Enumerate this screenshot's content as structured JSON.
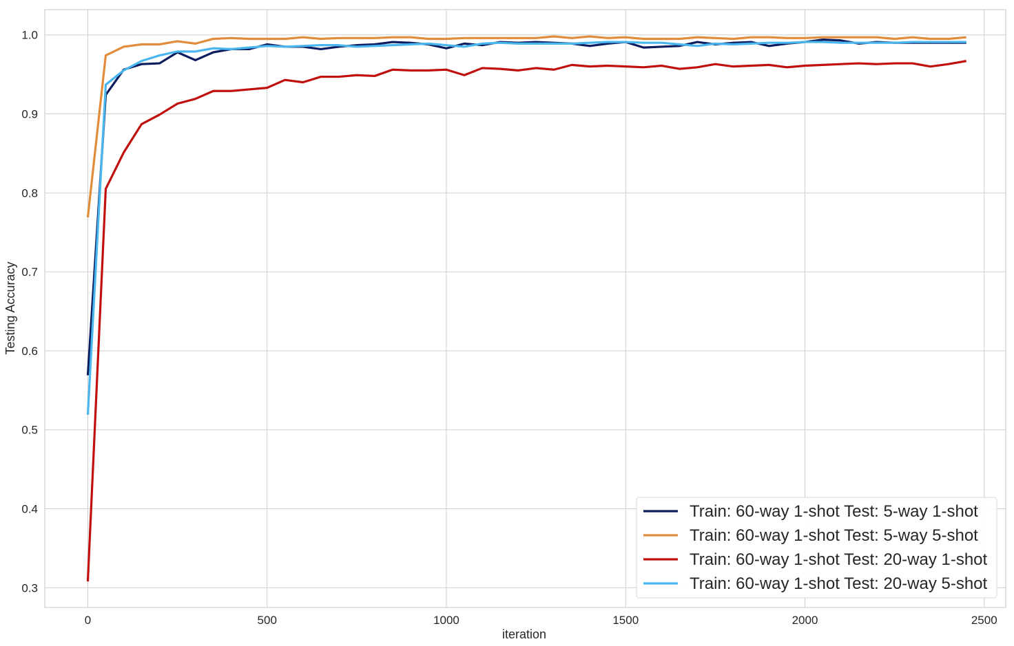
{
  "chart_data": {
    "type": "line",
    "title": "",
    "xlabel": "iteration",
    "ylabel": "Testing Accuracy",
    "xlim": [
      -120,
      2560
    ],
    "ylim": [
      0.275,
      1.032
    ],
    "xticks": [
      0,
      500,
      1000,
      1500,
      2000,
      2500
    ],
    "yticks": [
      0.3,
      0.4,
      0.5,
      0.6,
      0.7,
      0.8,
      0.9,
      1.0
    ],
    "xtick_labels": [
      "0",
      "500",
      "1000",
      "1500",
      "2000",
      "2500"
    ],
    "ytick_labels": [
      "0.3",
      "0.4",
      "0.5",
      "0.6",
      "0.7",
      "0.8",
      "0.9",
      "1.0"
    ],
    "grid": true,
    "legend_position": "lower-right",
    "x": [
      0,
      50,
      100,
      150,
      200,
      250,
      300,
      350,
      400,
      450,
      500,
      550,
      600,
      650,
      700,
      750,
      800,
      850,
      900,
      950,
      1000,
      1050,
      1100,
      1150,
      1200,
      1250,
      1300,
      1350,
      1400,
      1450,
      1500,
      1550,
      1600,
      1650,
      1700,
      1750,
      1800,
      1850,
      1900,
      1950,
      2000,
      2050,
      2100,
      2150,
      2200,
      2250,
      2300,
      2350,
      2400,
      2450
    ],
    "series": [
      {
        "name": "Train: 60-way 1-shot Test: 5-way 1-shot",
        "color": "#0b1d5e",
        "values": [
          0.569,
          0.924,
          0.956,
          0.963,
          0.964,
          0.978,
          0.968,
          0.978,
          0.982,
          0.982,
          0.988,
          0.985,
          0.985,
          0.982,
          0.985,
          0.987,
          0.988,
          0.991,
          0.99,
          0.988,
          0.983,
          0.989,
          0.987,
          0.991,
          0.99,
          0.991,
          0.99,
          0.989,
          0.986,
          0.989,
          0.991,
          0.984,
          0.985,
          0.986,
          0.991,
          0.988,
          0.99,
          0.991,
          0.986,
          0.989,
          0.991,
          0.994,
          0.993,
          0.989,
          0.991,
          0.99,
          0.99,
          0.99,
          0.99,
          0.99
        ]
      },
      {
        "name": "Train: 60-way 1-shot Test: 5-way 5-shot",
        "color": "#e08c3a",
        "values": [
          0.769,
          0.974,
          0.985,
          0.988,
          0.988,
          0.992,
          0.989,
          0.995,
          0.996,
          0.995,
          0.995,
          0.995,
          0.997,
          0.995,
          0.996,
          0.996,
          0.996,
          0.997,
          0.997,
          0.995,
          0.995,
          0.996,
          0.996,
          0.996,
          0.996,
          0.996,
          0.998,
          0.996,
          0.998,
          0.996,
          0.997,
          0.995,
          0.995,
          0.995,
          0.997,
          0.996,
          0.995,
          0.997,
          0.997,
          0.996,
          0.996,
          0.997,
          0.997,
          0.997,
          0.997,
          0.995,
          0.997,
          0.995,
          0.995,
          0.997
        ]
      },
      {
        "name": "Train: 60-way 1-shot Test: 20-way 1-shot",
        "color": "#c0100e",
        "values": [
          0.308,
          0.805,
          0.851,
          0.887,
          0.899,
          0.913,
          0.919,
          0.929,
          0.929,
          0.931,
          0.933,
          0.943,
          0.94,
          0.947,
          0.947,
          0.949,
          0.948,
          0.956,
          0.955,
          0.955,
          0.956,
          0.949,
          0.958,
          0.957,
          0.955,
          0.958,
          0.956,
          0.962,
          0.96,
          0.961,
          0.96,
          0.959,
          0.961,
          0.957,
          0.959,
          0.963,
          0.96,
          0.961,
          0.962,
          0.959,
          0.961,
          0.962,
          0.963,
          0.964,
          0.963,
          0.964,
          0.964,
          0.96,
          0.963,
          0.967
        ]
      },
      {
        "name": "Train: 60-way 1-shot Test: 20-way 5-shot",
        "color": "#4ab6ee",
        "values": [
          0.519,
          0.937,
          0.955,
          0.967,
          0.974,
          0.979,
          0.979,
          0.983,
          0.982,
          0.984,
          0.986,
          0.985,
          0.986,
          0.987,
          0.987,
          0.985,
          0.986,
          0.987,
          0.988,
          0.989,
          0.987,
          0.985,
          0.989,
          0.99,
          0.989,
          0.989,
          0.989,
          0.989,
          0.99,
          0.991,
          0.991,
          0.99,
          0.99,
          0.988,
          0.986,
          0.989,
          0.988,
          0.989,
          0.99,
          0.99,
          0.991,
          0.991,
          0.99,
          0.99,
          0.99,
          0.99,
          0.991,
          0.991,
          0.991,
          0.991
        ]
      }
    ]
  }
}
